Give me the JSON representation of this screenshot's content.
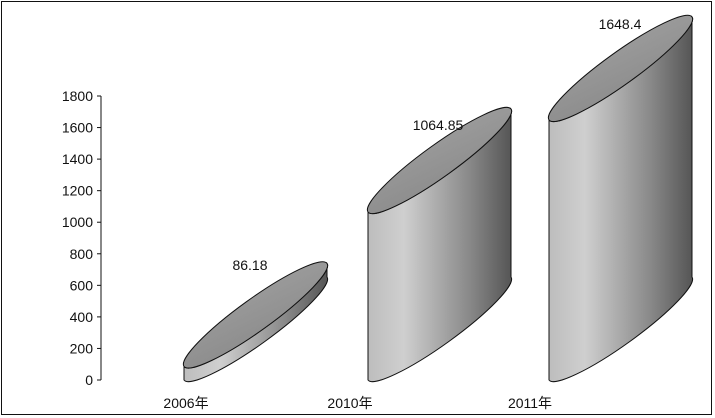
{
  "chart_data": {
    "type": "bar",
    "style": "3d-cylinder",
    "title": "",
    "xlabel": "",
    "ylabel": "",
    "categories": [
      "2006年",
      "2010年",
      "2011年"
    ],
    "values": [
      86.18,
      1064.85,
      1648.4
    ],
    "data_labels": [
      "86.18",
      "1064.85",
      "1648.4"
    ],
    "ylim": [
      0,
      1800
    ],
    "yticks": [
      0,
      200,
      400,
      600,
      800,
      1000,
      1200,
      1400,
      1600,
      1800
    ],
    "grid": false,
    "legend": "none",
    "colors": {
      "body_light": "#c8c8c8",
      "body_dark": "#5a5a5a",
      "top": "#8f8f8f",
      "outline": "#111111"
    }
  }
}
